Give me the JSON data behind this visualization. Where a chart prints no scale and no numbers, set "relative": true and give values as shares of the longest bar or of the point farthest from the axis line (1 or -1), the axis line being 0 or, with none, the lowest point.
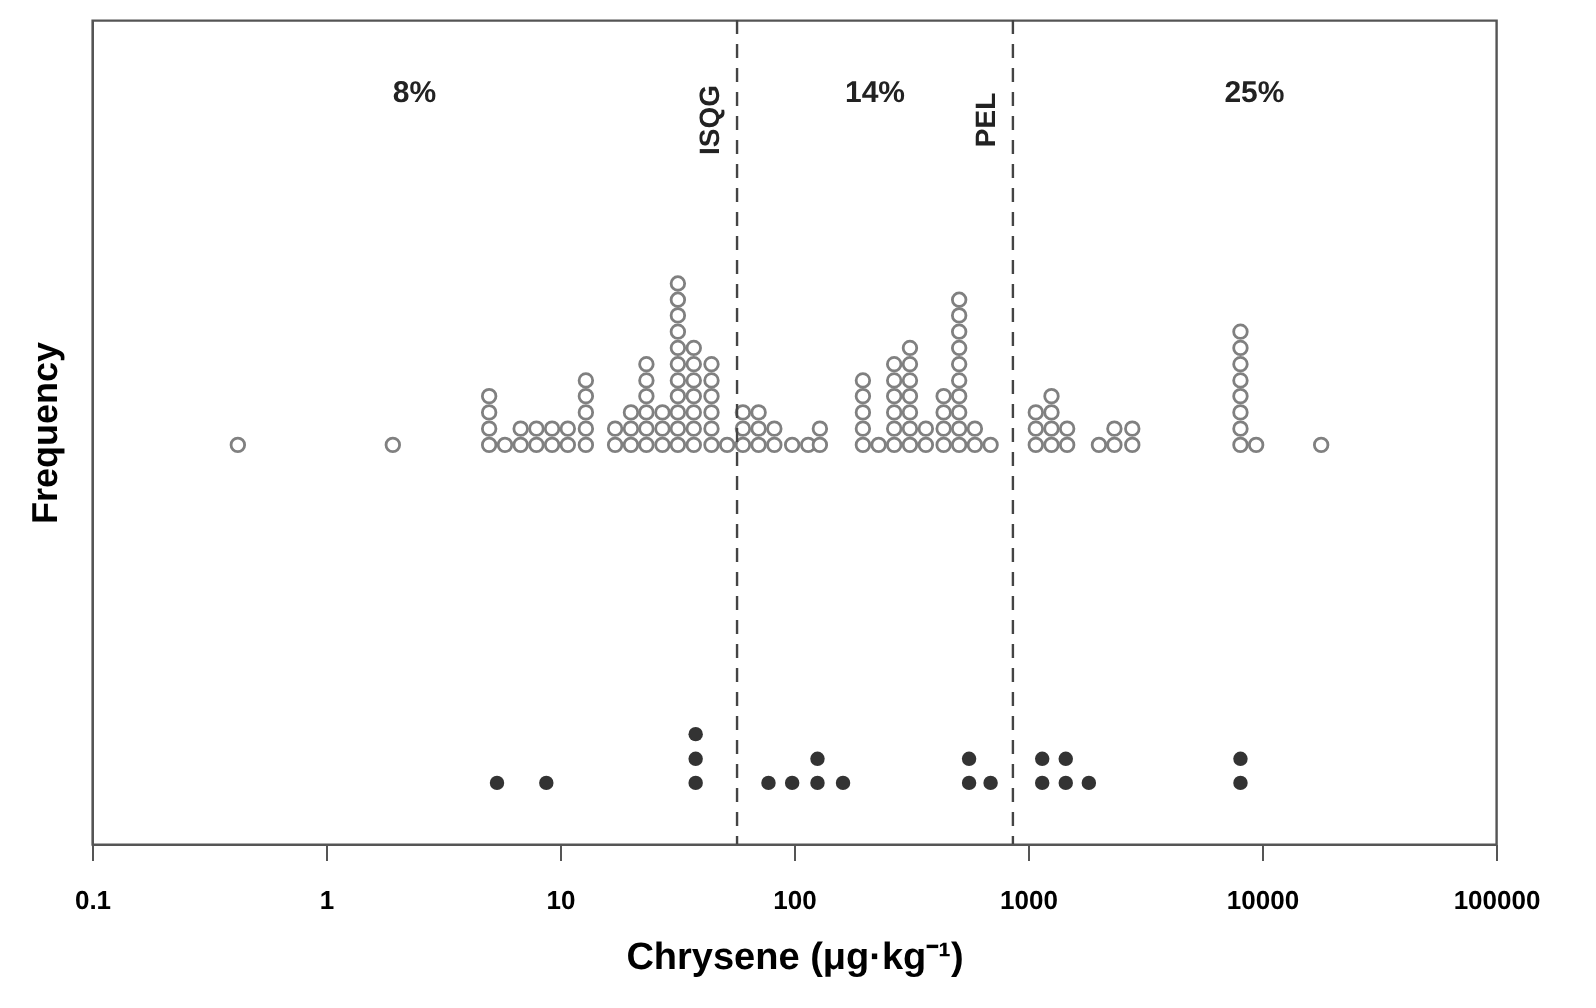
{
  "chart_data": {
    "type": "scatter",
    "xlabel": "Chrysene (μg·kg⁻¹)",
    "ylabel": "Frequency",
    "log": "x",
    "relative": true,
    "marker": "circle",
    "xlim": [
      0.1,
      100000
    ],
    "xticks": [
      0.1,
      1,
      10,
      100,
      1000,
      10000,
      100000
    ],
    "series": [
      {
        "color": "#808080",
        "x": [
          0.42,
          1.93,
          4.98,
          4.98,
          4.98,
          4.98,
          5.82,
          6.79,
          6.79,
          7.93,
          7.93,
          9.25,
          9.25,
          10.8,
          10.8,
          12.9,
          12.9,
          12.9,
          12.9,
          12.9,
          17.2,
          17.2,
          20.1,
          20.1,
          20.1,
          23.4,
          23.4,
          23.4,
          23.4,
          23.4,
          23.4,
          27.4,
          27.4,
          27.4,
          31.9,
          31.9,
          31.9,
          31.9,
          31.9,
          31.9,
          31.9,
          31.9,
          31.9,
          31.9,
          31.9,
          37.3,
          37.3,
          37.3,
          37.3,
          37.3,
          37.3,
          37.3,
          44.4,
          44.4,
          44.4,
          44.4,
          44.4,
          44.4,
          51.8,
          60.5,
          60.5,
          60.5,
          70.6,
          70.6,
          70.6,
          82.4,
          82.4,
          98.2,
          115,
          129,
          129,
          197,
          197,
          197,
          197,
          197,
          230,
          268,
          268,
          268,
          268,
          268,
          268,
          313,
          313,
          313,
          313,
          313,
          313,
          313,
          366,
          366,
          436,
          436,
          436,
          436,
          508,
          508,
          508,
          508,
          508,
          508,
          508,
          508,
          508,
          508,
          593,
          593,
          692,
          1080,
          1080,
          1080,
          1260,
          1260,
          1260,
          1260,
          1470,
          1470,
          2010,
          2340,
          2340,
          2790,
          2790,
          8090,
          8090,
          8090,
          8090,
          8090,
          8090,
          8090,
          8090,
          9440,
          17900
        ],
        "values": [
          0.712,
          0.712,
          0.712,
          0.741,
          0.77,
          0.799,
          0.712,
          0.712,
          0.741,
          0.712,
          0.741,
          0.712,
          0.741,
          0.712,
          0.741,
          0.712,
          0.741,
          0.77,
          0.799,
          0.827,
          0.712,
          0.741,
          0.712,
          0.741,
          0.77,
          0.712,
          0.741,
          0.77,
          0.799,
          0.827,
          0.856,
          0.712,
          0.741,
          0.77,
          0.712,
          0.741,
          0.77,
          0.799,
          0.827,
          0.856,
          0.885,
          0.914,
          0.943,
          0.971,
          1,
          0.712,
          0.741,
          0.77,
          0.799,
          0.827,
          0.856,
          0.885,
          0.712,
          0.741,
          0.77,
          0.799,
          0.827,
          0.856,
          0.712,
          0.712,
          0.741,
          0.77,
          0.712,
          0.741,
          0.77,
          0.712,
          0.741,
          0.712,
          0.712,
          0.712,
          0.741,
          0.712,
          0.741,
          0.77,
          0.799,
          0.827,
          0.712,
          0.712,
          0.741,
          0.77,
          0.799,
          0.827,
          0.856,
          0.712,
          0.741,
          0.77,
          0.799,
          0.827,
          0.856,
          0.885,
          0.712,
          0.741,
          0.712,
          0.741,
          0.77,
          0.799,
          0.712,
          0.741,
          0.77,
          0.799,
          0.827,
          0.856,
          0.885,
          0.914,
          0.943,
          0.971,
          0.712,
          0.741,
          0.712,
          0.712,
          0.741,
          0.77,
          0.712,
          0.741,
          0.77,
          0.799,
          0.712,
          0.741,
          0.712,
          0.712,
          0.741,
          0.712,
          0.741,
          0.712,
          0.741,
          0.77,
          0.799,
          0.827,
          0.856,
          0.885,
          0.914,
          0.712,
          0.712
        ]
      },
      {
        "color": "#333333",
        "x": [
          5.38,
          8.74,
          38.0,
          38.0,
          38.0,
          77.8,
          98.2,
          126,
          126,
          162,
          560,
          560,
          692,
          1150,
          1150,
          1450,
          1450,
          1820,
          8090,
          8090
        ],
        "values": [
          0.109,
          0.109,
          0.109,
          0.152,
          0.196,
          0.109,
          0.109,
          0.109,
          0.152,
          0.109,
          0.109,
          0.152,
          0.109,
          0.109,
          0.152,
          0.109,
          0.152,
          0.109,
          0.109,
          0.152
        ]
      }
    ],
    "ref_lines": [
      {
        "axis": "x",
        "value": 57.1,
        "label": "ISQG",
        "color": "#444444",
        "line_style": "dashed"
      },
      {
        "axis": "x",
        "value": 862,
        "label": "PEL",
        "color": "#444444",
        "line_style": "dashed"
      }
    ],
    "annotations": [
      "8%",
      "14%",
      "25%"
    ]
  }
}
